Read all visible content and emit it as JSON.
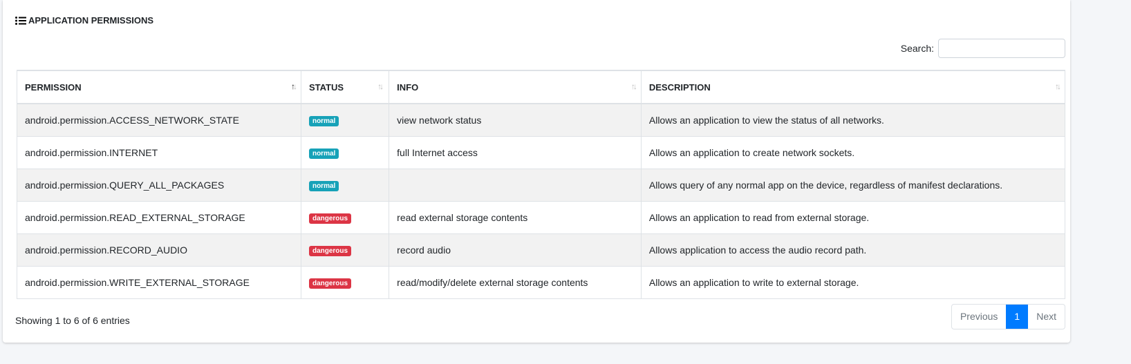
{
  "card": {
    "title": "APPLICATION PERMISSIONS",
    "title_icon": "list-icon"
  },
  "search": {
    "label": "Search:",
    "value": "",
    "placeholder": ""
  },
  "table": {
    "columns": [
      "PERMISSION",
      "STATUS",
      "INFO",
      "DESCRIPTION"
    ],
    "sorted_column": "PERMISSION",
    "sort_direction": "ascending",
    "rows": [
      {
        "permission": "android.permission.ACCESS_NETWORK_STATE",
        "status": "normal",
        "info": "view network status",
        "description": "Allows an application to view the status of all networks."
      },
      {
        "permission": "android.permission.INTERNET",
        "status": "normal",
        "info": "full Internet access",
        "description": "Allows an application to create network sockets."
      },
      {
        "permission": "android.permission.QUERY_ALL_PACKAGES",
        "status": "normal",
        "info": "",
        "description": "Allows query of any normal app on the device, regardless of manifest declarations."
      },
      {
        "permission": "android.permission.READ_EXTERNAL_STORAGE",
        "status": "dangerous",
        "info": "read external storage contents",
        "description": "Allows an application to read from external storage."
      },
      {
        "permission": "android.permission.RECORD_AUDIO",
        "status": "dangerous",
        "info": "record audio",
        "description": "Allows application to access the audio record path."
      },
      {
        "permission": "android.permission.WRITE_EXTERNAL_STORAGE",
        "status": "dangerous",
        "info": "read/modify/delete external storage contents",
        "description": "Allows an application to write to external storage."
      }
    ]
  },
  "status_colors": {
    "normal": "#17a2b8",
    "dangerous": "#dc3545"
  },
  "footer": {
    "info": "Showing 1 to 6 of 6 entries",
    "previous": "Previous",
    "page": "1",
    "next": "Next"
  },
  "accent": "#007bff"
}
